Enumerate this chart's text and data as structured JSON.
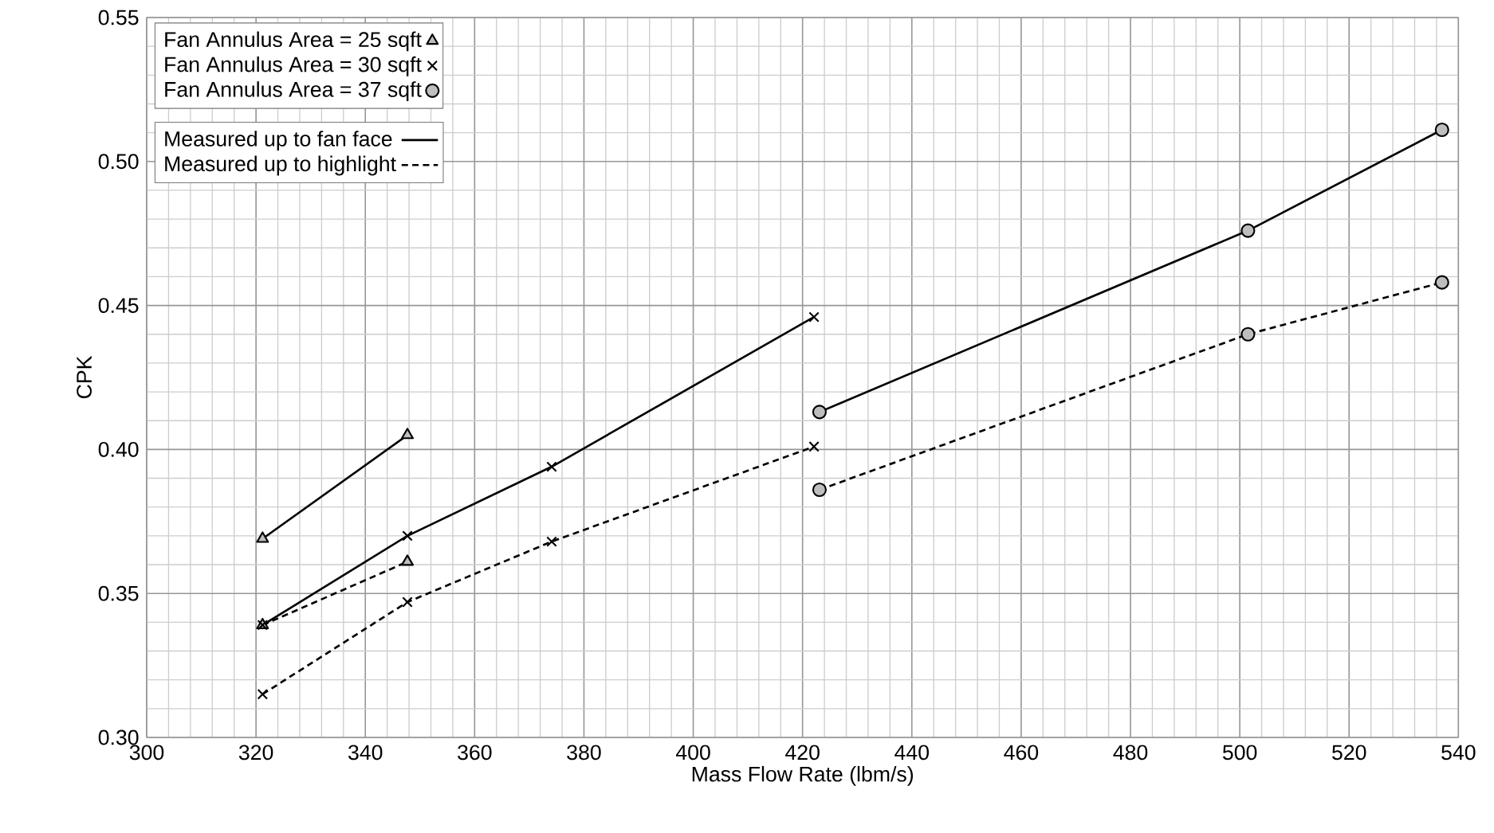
{
  "chart_data": {
    "type": "line",
    "xlabel": "Mass Flow Rate (lbm/s)",
    "ylabel": "CPK",
    "xlim": [
      300,
      540
    ],
    "ylim": [
      0.3,
      0.55
    ],
    "xticks": [
      300,
      320,
      340,
      360,
      380,
      400,
      420,
      440,
      460,
      480,
      500,
      520,
      540
    ],
    "yticks": [
      {
        "value": 0.3,
        "label": "0.30"
      },
      {
        "value": 0.35,
        "label": "0.35"
      },
      {
        "value": 0.4,
        "label": "0.40"
      },
      {
        "value": 0.45,
        "label": "0.45"
      },
      {
        "value": 0.5,
        "label": "0.50"
      },
      {
        "value": 0.55,
        "label": "0.55"
      }
    ],
    "grid": true,
    "legend": "top left",
    "annotations": [
      "Measured up to fan face",
      "Measured up to highlight"
    ],
    "series": [
      {
        "name": "Fan Annulus Area = 25 sqft",
        "color": "#000000",
        "marker": "triangle",
        "line_style": "solid",
        "x": [
          321.2,
          347.7
        ],
        "values": [
          0.369,
          0.405
        ]
      },
      {
        "name": "Fan Annulus Area = 30 sqft",
        "color": "#000000",
        "marker": "cross",
        "line_style": "solid",
        "x": [
          321.2,
          347.7,
          374.1,
          422.1
        ],
        "values": [
          0.339,
          0.37,
          0.394,
          0.446
        ]
      },
      {
        "name": "Fan Annulus Area = 37 sqft",
        "color": "#000000",
        "marker": "circle",
        "line_style": "solid",
        "x": [
          423.1,
          501.5,
          537.0
        ],
        "values": [
          0.413,
          0.476,
          0.511
        ]
      },
      {
        "color": "#000000",
        "marker": "triangle",
        "line_style": "dashed",
        "x": [
          321.2,
          347.7
        ],
        "values": [
          0.339,
          0.361
        ]
      },
      {
        "color": "#000000",
        "marker": "cross",
        "line_style": "dashed",
        "x": [
          321.2,
          347.7,
          374.1,
          422.1
        ],
        "values": [
          0.315,
          0.347,
          0.368,
          0.401
        ]
      },
      {
        "color": "#000000",
        "marker": "circle",
        "line_style": "dashed",
        "x": [
          423.1,
          501.5,
          537.0
        ],
        "values": [
          0.386,
          0.44,
          0.458
        ]
      }
    ]
  }
}
